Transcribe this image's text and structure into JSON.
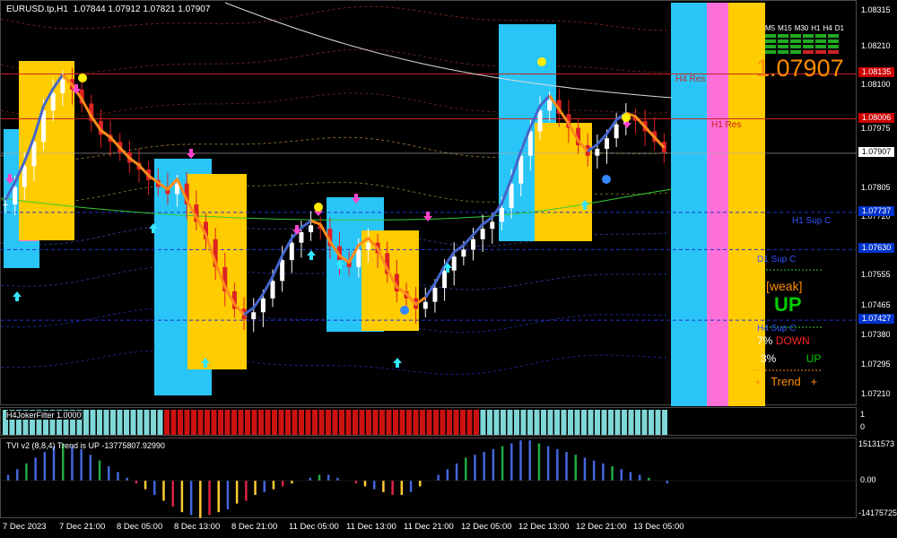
{
  "header": {
    "symbol_line": "EURUSD.tp,H1  1.07844 1.07912 1.07821 1.07907"
  },
  "price_axis": {
    "ticks": [
      "1.08315",
      "1.08210",
      "1.08100",
      "1.07975",
      "1.07805",
      "1.07720",
      "1.07555",
      "1.07465",
      "1.07380",
      "1.07295",
      "1.07210"
    ],
    "tags": [
      {
        "label": "1.08135",
        "color": "#cc0000"
      },
      {
        "label": "1.08006",
        "color": "#cc0000"
      },
      {
        "label": "1.07907",
        "color": "#ffffff"
      },
      {
        "label": "1.07737",
        "color": "#0033cc"
      },
      {
        "label": "1.07630",
        "color": "#0033cc"
      },
      {
        "label": "1.07427",
        "color": "#0033cc"
      }
    ]
  },
  "levels": [
    {
      "label": "H4 Res",
      "color": "#cc2222"
    },
    {
      "label": "H1 Res",
      "color": "#cc2222"
    },
    {
      "label": "H1 Sup C",
      "color": "#3355ff"
    },
    {
      "label": "D1 Sup C",
      "color": "#3355ff"
    },
    {
      "label": "H4 Sup C",
      "color": "#3355ff"
    }
  ],
  "panel": {
    "timeframes": [
      "M5",
      "M15",
      "M30",
      "H1",
      "H4",
      "D1"
    ],
    "price": "1.07907",
    "strength": "[weak]",
    "direction": "UP",
    "down_line_pct": "7%",
    "down_line_label": "DOWN",
    "up_line_pct": "3%",
    "up_line_label": "UP",
    "trend_line": "+   Trend   +",
    "colors": {
      "price": "#ff8c00",
      "strength": "#ff8c00",
      "direction": "#00cc00",
      "down": "#ff2222",
      "up": "#00cc00",
      "trend": "#ff8c00"
    }
  },
  "oscillator": {
    "title": "H4JokerFilter 1.0000",
    "axis": [
      "1",
      "0"
    ]
  },
  "tvi": {
    "title": "TVI v2 (8,8,4) Trend is UP -13775807.92990",
    "axis": [
      "15131573",
      "0.00",
      "-14175725"
    ]
  },
  "time_axis": [
    "7 Dec 2023",
    "7 Dec 21:00",
    "8 Dec 05:00",
    "8 Dec 13:00",
    "8 Dec 21:00",
    "11 Dec 05:00",
    "11 Dec 13:00",
    "11 Dec 21:00",
    "12 Dec 05:00",
    "12 Dec 13:00",
    "12 Dec 21:00",
    "13 Dec 05:00"
  ],
  "chart_data": {
    "type": "candlestick",
    "symbol": "EURUSD.tp",
    "timeframe": "H1",
    "ohlc_last": {
      "open": 1.07844,
      "high": 1.07912,
      "low": 1.07821,
      "close": 1.07907
    },
    "ylim": [
      1.0718,
      1.08345
    ],
    "close_series": [
      1.0776,
      1.0781,
      1.0787,
      1.0794,
      1.0803,
      1.0808,
      1.0812,
      1.0809,
      1.0805,
      1.08,
      1.0796,
      1.0794,
      1.0791,
      1.0788,
      1.0786,
      1.0783,
      1.0781,
      1.0779,
      1.0782,
      1.0776,
      1.0771,
      1.0766,
      1.0758,
      1.0751,
      1.0746,
      1.0743,
      1.0745,
      1.0749,
      1.0754,
      1.076,
      1.0765,
      1.0768,
      1.077,
      1.0769,
      1.0764,
      1.076,
      1.0758,
      1.0763,
      1.0765,
      1.0762,
      1.0756,
      1.0751,
      1.0749,
      1.0746,
      1.0748,
      1.0752,
      1.0757,
      1.0761,
      1.0763,
      1.0766,
      1.0769,
      1.0771,
      1.0775,
      1.0782,
      1.079,
      1.0797,
      1.0803,
      1.0806,
      1.0802,
      1.0798,
      1.0793,
      1.079,
      1.0792,
      1.0795,
      1.0799,
      1.0801,
      1.08,
      1.0797,
      1.0794,
      1.0791
    ],
    "horizontal_levels": [
      {
        "name": "H4 Res",
        "value": 1.08135
      },
      {
        "name": "H1 Res",
        "value": 1.08006
      },
      {
        "name": "H1 Sup C",
        "value": 1.07737
      },
      {
        "name": "D1 Sup C",
        "value": 1.0763
      },
      {
        "name": "H4 Sup C",
        "value": 1.07427
      }
    ],
    "oscillator_segments": [
      {
        "color": "#7fd6d6",
        "bars": 24
      },
      {
        "color": "#cc1111",
        "bars": 47
      },
      {
        "color": "#7fd6d6",
        "bars": 28
      }
    ],
    "tvi_values": [
      2,
      4,
      6,
      8,
      10,
      12,
      13,
      12,
      11,
      9,
      7,
      5,
      3,
      1,
      -1,
      -3,
      -5,
      -7,
      -9,
      -11,
      -12,
      -13,
      -12,
      -11,
      -10,
      -8,
      -7,
      -5,
      -4,
      -3,
      -2,
      -1,
      0,
      1,
      2,
      2,
      1,
      0,
      -1,
      -2,
      -3,
      -4,
      -5,
      -5,
      -4,
      -2,
      0,
      2,
      4,
      6,
      8,
      9,
      10,
      11,
      12,
      13,
      14,
      14,
      13,
      12,
      11,
      10,
      9,
      8,
      7,
      6,
      5,
      4,
      3,
      2,
      1,
      0,
      -1
    ],
    "tvi_colors": [
      "#4466dd",
      "#22aa44",
      "#ffcc33",
      "#dd2244"
    ]
  }
}
